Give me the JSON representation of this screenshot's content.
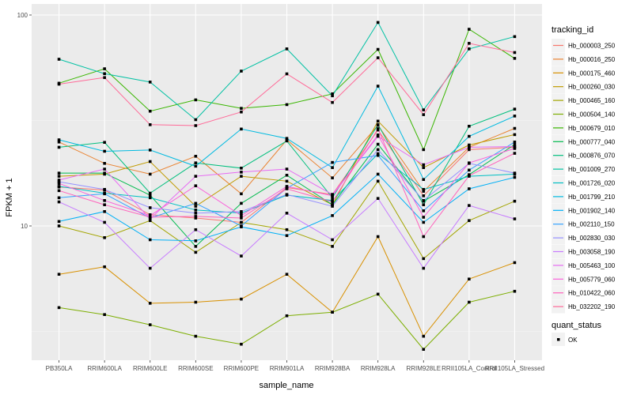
{
  "chart_data": {
    "type": "line",
    "title": "",
    "xlabel": "sample_name",
    "ylabel": "FPKM + 1",
    "yscale": "log10",
    "ylim": [
      2.3,
      115
    ],
    "yticks": [
      10,
      100
    ],
    "ytick_labels": [
      "10",
      "100"
    ],
    "grid": true,
    "legend_position": "right",
    "categories": [
      "PB350LA",
      "RRIM600LA",
      "RRIM600LE",
      "RRIM600SE",
      "RRIM600PE",
      "RRIM901LA",
      "RRIM928BA",
      "RRIM928LA",
      "RRIM928LE",
      "RRII105LA_Control",
      "RRII105LA_Stressed"
    ],
    "legend_title": "tracking_id",
    "series": [
      {
        "name": "Hb_000003_250",
        "color": "#F8766D",
        "values": [
          15.3,
          14.8,
          11.3,
          10.9,
          10.4,
          15.2,
          14.1,
          28.5,
          13.9,
          23.0,
          23.6
        ]
      },
      {
        "name": "Hb_000016_250",
        "color": "#EA8331",
        "values": [
          25.0,
          19.8,
          17.6,
          21.4,
          14.2,
          25.6,
          16.9,
          30.0,
          14.6,
          23.6,
          29.0
        ]
      },
      {
        "name": "Hb_000175_460",
        "color": "#D89000",
        "values": [
          5.9,
          6.4,
          4.3,
          4.35,
          4.5,
          5.9,
          3.9,
          8.9,
          3.0,
          5.6,
          6.7
        ]
      },
      {
        "name": "Hb_000260_030",
        "color": "#C09B00",
        "values": [
          17.2,
          17.6,
          20.2,
          12.4,
          17.2,
          16.3,
          12.6,
          31.4,
          18.9,
          24.2,
          27.1
        ]
      },
      {
        "name": "Hb_000465_160",
        "color": "#A3A500",
        "values": [
          10.0,
          8.8,
          10.6,
          7.5,
          10.4,
          9.6,
          8.0,
          16.3,
          7.0,
          10.6,
          13.1
        ]
      },
      {
        "name": "Hb_000504_140",
        "color": "#7CAE00",
        "values": [
          4.1,
          3.8,
          3.4,
          3.0,
          2.75,
          3.75,
          3.9,
          4.75,
          2.6,
          4.35,
          4.9
        ]
      },
      {
        "name": "Hb_000679_010",
        "color": "#39B600",
        "values": [
          47.5,
          55.6,
          35.0,
          39.6,
          36.1,
          37.6,
          42.3,
          68.7,
          23.0,
          85.6,
          62.3
        ]
      },
      {
        "name": "Hb_000777_040",
        "color": "#00BB4E",
        "values": [
          17.8,
          17.8,
          14.0,
          8.0,
          12.8,
          17.4,
          12.6,
          24.4,
          13.1,
          17.5,
          24.3
        ]
      },
      {
        "name": "Hb_000876_070",
        "color": "#00BF7D",
        "values": [
          23.6,
          24.9,
          14.3,
          19.9,
          18.8,
          25.3,
          13.6,
          30.2,
          12.6,
          29.7,
          35.8
        ]
      },
      {
        "name": "Hb_001009_270",
        "color": "#00C1A3",
        "values": [
          61.7,
          52.7,
          48.1,
          31.9,
          54.2,
          69.1,
          41.4,
          92.2,
          35.5,
          69.1,
          79.0
        ]
      },
      {
        "name": "Hb_001726_020",
        "color": "#00BFC4",
        "values": [
          15.4,
          14.3,
          13.6,
          11.9,
          11.5,
          14.0,
          13.2,
          22.0,
          14.9,
          17.2,
          17.6
        ]
      },
      {
        "name": "Hb_001799_210",
        "color": "#00BAE0",
        "values": [
          25.6,
          22.6,
          22.9,
          19.2,
          28.8,
          26.0,
          18.9,
          46.0,
          16.6,
          26.6,
          33.2
        ]
      },
      {
        "name": "Hb_001902_140",
        "color": "#00B0F6",
        "values": [
          10.5,
          11.7,
          8.6,
          8.5,
          9.9,
          9.0,
          11.2,
          17.6,
          10.4,
          15.0,
          17.0
        ]
      },
      {
        "name": "Hb_002110_150",
        "color": "#35A2FF",
        "values": [
          13.6,
          14.2,
          10.9,
          12.8,
          10.0,
          15.1,
          20.0,
          21.6,
          11.8,
          18.4,
          25.0
        ]
      },
      {
        "name": "Hb_002830_030",
        "color": "#9590FF",
        "values": [
          16.2,
          14.9,
          12.2,
          11.5,
          11.7,
          14.1,
          12.4,
          23.0,
          13.2,
          19.8,
          17.8
        ]
      },
      {
        "name": "Hb_003058_190",
        "color": "#C77CFF",
        "values": [
          13.0,
          10.4,
          6.3,
          9.6,
          7.2,
          11.5,
          8.6,
          13.5,
          6.3,
          12.5,
          10.8
        ]
      },
      {
        "name": "Hb_005463_100",
        "color": "#E76BF3",
        "values": [
          16.5,
          18.6,
          10.8,
          17.2,
          18.0,
          18.6,
          14.1,
          26.6,
          19.5,
          23.6,
          23.8
        ]
      },
      {
        "name": "Hb_005779_060",
        "color": "#FA62DB",
        "values": [
          15.9,
          13.2,
          11.2,
          15.5,
          11.2,
          15.4,
          13.9,
          27.0,
          11.0,
          19.9,
          23.3
        ]
      },
      {
        "name": "Hb_010422_060",
        "color": "#FF62BC",
        "values": [
          14.7,
          12.6,
          11.0,
          11.1,
          10.9,
          15.0,
          13.0,
          28.9,
          8.9,
          17.3,
          22.1
        ]
      },
      {
        "name": "Hb_032202_190",
        "color": "#FF6A98",
        "values": [
          47.0,
          50.5,
          30.2,
          29.9,
          34.7,
          52.6,
          38.5,
          62.7,
          33.7,
          73.4,
          66.4
        ]
      }
    ],
    "legend2_title": "quant_status",
    "legend2_entries": [
      "OK"
    ]
  }
}
